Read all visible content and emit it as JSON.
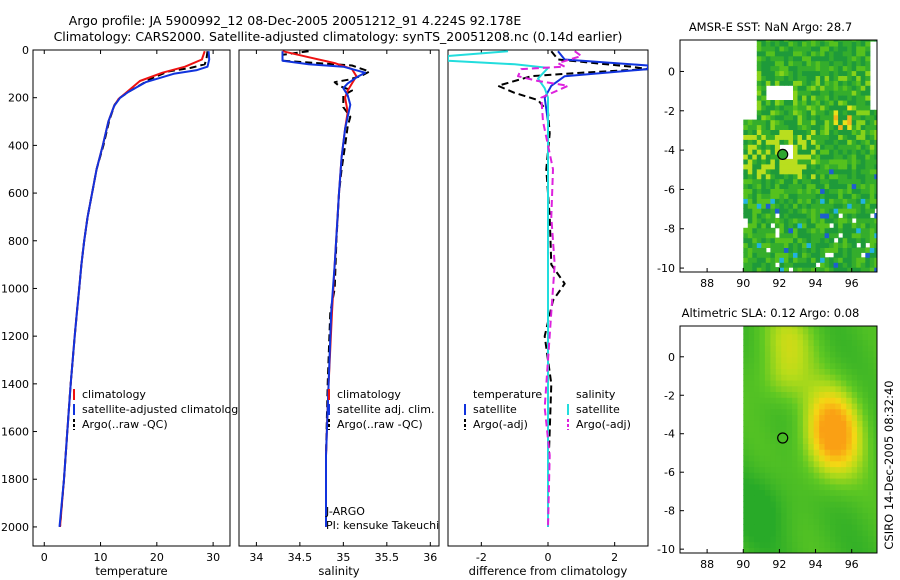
{
  "header": {
    "line1": "Argo profile: JA 5900992_12 08-Dec-2005 20051212_91 4.224S 92.178E",
    "line2": "Climatology: CARS2000. Satellite-adjusted climatology: synTS_20051208.nc (0.14d earlier)"
  },
  "side_label": "CSIRO 14-Dec-2005 08:32:40",
  "colors": {
    "red": "#ee1111",
    "blue": "#1133dd",
    "black": "#000000",
    "cyan": "#22dddd",
    "magenta": "#dd22dd"
  },
  "chart_data": [
    {
      "type": "line",
      "id": "temperature",
      "xlabel": "temperature",
      "xlim": [
        -2,
        33
      ],
      "ylim": [
        2080,
        0
      ],
      "xticks": [
        0,
        10,
        20,
        30
      ],
      "yticks": [
        0,
        200,
        400,
        600,
        800,
        1000,
        1200,
        1400,
        1600,
        1800,
        2000
      ],
      "legend": [
        {
          "label": "climatology",
          "color": "#ee1111",
          "dash": false
        },
        {
          "label": "satellite-adjusted climatology",
          "color": "#1133dd",
          "dash": false
        },
        {
          "label": "Argo(..raw -QC)",
          "color": "#000000",
          "dash": true
        }
      ],
      "series": [
        {
          "color": "#000000",
          "dash": true,
          "points": [
            [
              29,
              5
            ],
            [
              28.8,
              40
            ],
            [
              28.5,
              60
            ],
            [
              26,
              75
            ],
            [
              22,
              90
            ],
            [
              19,
              120
            ],
            [
              15,
              175
            ],
            [
              13.5,
              200
            ],
            [
              12.5,
              230
            ],
            [
              11.5,
              300
            ],
            [
              10.5,
              400
            ],
            [
              9.3,
              500
            ],
            [
              8.5,
              600
            ],
            [
              7.7,
              700
            ],
            [
              7.1,
              800
            ],
            [
              6.6,
              900
            ],
            [
              6.2,
              1000
            ],
            [
              5.8,
              1100
            ],
            [
              5.4,
              1200
            ],
            [
              4.7,
              1400
            ],
            [
              4.1,
              1600
            ],
            [
              3.5,
              1800
            ],
            [
              2.8,
              2000
            ]
          ]
        },
        {
          "color": "#ee1111",
          "dash": false,
          "points": [
            [
              28.5,
              5
            ],
            [
              28,
              40
            ],
            [
              25,
              70
            ],
            [
              21,
              95
            ],
            [
              17,
              130
            ],
            [
              14.5,
              180
            ],
            [
              13.2,
              205
            ],
            [
              12.4,
              235
            ],
            [
              11.4,
              300
            ],
            [
              10.4,
              400
            ],
            [
              9.3,
              500
            ],
            [
              8.5,
              600
            ],
            [
              7.7,
              700
            ],
            [
              7.1,
              800
            ],
            [
              6.6,
              900
            ],
            [
              6.2,
              1000
            ],
            [
              5.8,
              1100
            ],
            [
              5.4,
              1200
            ],
            [
              4.7,
              1400
            ],
            [
              4.1,
              1600
            ],
            [
              3.5,
              1800
            ],
            [
              2.8,
              2000
            ]
          ]
        },
        {
          "color": "#1133dd",
          "dash": false,
          "points": [
            [
              29.2,
              5
            ],
            [
              29.3,
              40
            ],
            [
              29,
              70
            ],
            [
              27,
              85
            ],
            [
              23,
              100
            ],
            [
              18,
              135
            ],
            [
              15,
              175
            ],
            [
              13.5,
              200
            ],
            [
              12.4,
              235
            ],
            [
              11.4,
              300
            ],
            [
              10.4,
              400
            ],
            [
              9.3,
              500
            ],
            [
              8.5,
              600
            ],
            [
              7.7,
              700
            ],
            [
              7.1,
              800
            ],
            [
              6.6,
              900
            ],
            [
              6.2,
              1000
            ],
            [
              5.8,
              1100
            ],
            [
              5.4,
              1200
            ],
            [
              4.7,
              1400
            ],
            [
              4.1,
              1600
            ],
            [
              3.5,
              1800
            ],
            [
              2.7,
              2000
            ]
          ]
        }
      ]
    },
    {
      "type": "line",
      "id": "salinity",
      "xlabel": "salinity",
      "xlim": [
        33.8,
        36.1
      ],
      "ylim": [
        2080,
        0
      ],
      "xticks": [
        34,
        34.5,
        35,
        35.5,
        36
      ],
      "yticks": [],
      "annotation": [
        "J-ARGO",
        "PI: kensuke Takeuchi"
      ],
      "legend": [
        {
          "label": "climatology",
          "color": "#ee1111",
          "dash": false
        },
        {
          "label": "satellite adj. clim.",
          "color": "#1133dd",
          "dash": false
        },
        {
          "label": "Argo(..raw -QC)",
          "color": "#000000",
          "dash": true
        }
      ],
      "series": [
        {
          "color": "#000000",
          "dash": true,
          "points": [
            [
              34.6,
              5
            ],
            [
              34.3,
              20
            ],
            [
              34.3,
              45
            ],
            [
              34.7,
              55
            ],
            [
              35.1,
              65
            ],
            [
              35.3,
              90
            ],
            [
              35.2,
              110
            ],
            [
              35.05,
              125
            ],
            [
              34.9,
              135
            ],
            [
              34.95,
              150
            ],
            [
              35.1,
              170
            ],
            [
              35.0,
              190
            ],
            [
              35.0,
              240
            ],
            [
              35.08,
              280
            ],
            [
              35.05,
              320
            ],
            [
              35.02,
              400
            ],
            [
              34.98,
              500
            ],
            [
              34.95,
              600
            ],
            [
              34.92,
              800
            ],
            [
              34.9,
              1000
            ],
            [
              34.85,
              1100
            ],
            [
              34.84,
              1200
            ],
            [
              34.82,
              1400
            ],
            [
              34.8,
              1700
            ],
            [
              34.8,
              2000
            ]
          ]
        },
        {
          "color": "#ee1111",
          "dash": false,
          "points": [
            [
              34.3,
              5
            ],
            [
              34.6,
              30
            ],
            [
              34.9,
              55
            ],
            [
              35.1,
              80
            ],
            [
              35.15,
              110
            ],
            [
              35.1,
              140
            ],
            [
              35.05,
              170
            ],
            [
              35.02,
              200
            ],
            [
              35.05,
              260
            ],
            [
              35.02,
              330
            ],
            [
              34.98,
              450
            ],
            [
              34.95,
              600
            ],
            [
              34.9,
              900
            ],
            [
              34.87,
              1100
            ],
            [
              34.83,
              1400
            ],
            [
              34.8,
              1700
            ],
            [
              34.8,
              2000
            ]
          ]
        },
        {
          "color": "#1133dd",
          "dash": false,
          "points": [
            [
              34.3,
              5
            ],
            [
              34.3,
              45
            ],
            [
              34.6,
              60
            ],
            [
              35.0,
              70
            ],
            [
              35.25,
              95
            ],
            [
              35.15,
              115
            ],
            [
              35.05,
              140
            ],
            [
              35.0,
              160
            ],
            [
              35.05,
              190
            ],
            [
              35.08,
              230
            ],
            [
              35.05,
              280
            ],
            [
              35.02,
              330
            ],
            [
              34.98,
              450
            ],
            [
              34.95,
              600
            ],
            [
              34.9,
              900
            ],
            [
              34.86,
              1100
            ],
            [
              34.83,
              1400
            ],
            [
              34.8,
              1700
            ],
            [
              34.8,
              2000
            ]
          ]
        }
      ]
    },
    {
      "type": "line",
      "id": "difference",
      "xlabel": "difference from climatology",
      "xlim": [
        -3,
        3
      ],
      "ylim": [
        2080,
        0
      ],
      "xticks": [
        -2,
        0,
        2
      ],
      "yticks": [],
      "legend": [
        {
          "label": "temperature",
          "color": null,
          "dash": false,
          "col": 0
        },
        {
          "label": "satellite",
          "color": "#1133dd",
          "dash": false,
          "col": 0
        },
        {
          "label": "Argo(-adj)",
          "color": "#000000",
          "dash": true,
          "col": 0
        },
        {
          "label": "salinity",
          "color": null,
          "dash": false,
          "col": 1
        },
        {
          "label": "satellite",
          "color": "#22dddd",
          "dash": false,
          "col": 1
        },
        {
          "label": "Argo(-adj)",
          "color": "#dd22dd",
          "dash": true,
          "col": 1
        }
      ],
      "series": [
        {
          "color": "#000000",
          "dash": true,
          "points": [
            [
              0.1,
              5
            ],
            [
              0.3,
              40
            ],
            [
              2.5,
              70
            ],
            [
              3.0,
              80
            ],
            [
              1.0,
              95
            ],
            [
              -0.5,
              110
            ],
            [
              -1.5,
              150
            ],
            [
              -1.0,
              180
            ],
            [
              -0.3,
              210
            ],
            [
              0.0,
              260
            ],
            [
              0.05,
              350
            ],
            [
              -0.05,
              500
            ],
            [
              0.05,
              700
            ],
            [
              0.1,
              900
            ],
            [
              0.5,
              980
            ],
            [
              0.15,
              1050
            ],
            [
              -0.1,
              1200
            ],
            [
              0.1,
              1400
            ],
            [
              0.05,
              1600
            ],
            [
              0.0,
              1800
            ],
            [
              0.0,
              2000
            ]
          ]
        },
        {
          "color": "#1133dd",
          "dash": false,
          "points": [
            [
              0.3,
              5
            ],
            [
              0.5,
              40
            ],
            [
              3.0,
              65
            ],
            [
              3.0,
              80
            ],
            [
              0.5,
              110
            ],
            [
              0.1,
              150
            ],
            [
              -0.1,
              200
            ],
            [
              0.0,
              300
            ],
            [
              0.0,
              600
            ],
            [
              0.0,
              1000
            ],
            [
              0.0,
              1400
            ],
            [
              0.0,
              2000
            ]
          ]
        },
        {
          "color": "#22dddd",
          "dash": false,
          "points": [
            [
              -1.2,
              5
            ],
            [
              -3.0,
              25
            ],
            [
              -3.0,
              45
            ],
            [
              -1.0,
              60
            ],
            [
              0.0,
              75
            ],
            [
              -0.3,
              120
            ],
            [
              -0.1,
              160
            ],
            [
              0.0,
              200
            ],
            [
              0.0,
              400
            ],
            [
              0.0,
              800
            ],
            [
              0.0,
              1200
            ],
            [
              0.0,
              1600
            ],
            [
              0.0,
              2000
            ]
          ]
        },
        {
          "color": "#dd22dd",
          "dash": true,
          "points": [
            [
              0.8,
              5
            ],
            [
              1.0,
              25
            ],
            [
              0.3,
              55
            ],
            [
              0.5,
              70
            ],
            [
              -0.8,
              80
            ],
            [
              -0.9,
              110
            ],
            [
              -0.3,
              130
            ],
            [
              0.6,
              150
            ],
            [
              -0.2,
              200
            ],
            [
              -0.15,
              300
            ],
            [
              0.15,
              500
            ],
            [
              0.1,
              700
            ],
            [
              0.2,
              900
            ],
            [
              0.1,
              1100
            ],
            [
              0.0,
              1300
            ],
            [
              -0.1,
              1500
            ],
            [
              0.05,
              1700
            ],
            [
              0.0,
              2000
            ]
          ]
        }
      ]
    },
    {
      "type": "heatmap",
      "id": "sst_map",
      "title": "AMSR-E SST: NaN Argo: 28.7",
      "xlim": [
        86.5,
        97.4
      ],
      "ylim": [
        -10.2,
        1.6
      ],
      "xticks": [
        88,
        90,
        92,
        94,
        96
      ],
      "yticks": [
        -10,
        -8,
        -6,
        -4,
        -2,
        0
      ],
      "marker": [
        92.18,
        -4.22
      ],
      "palette": [
        "#1e9a3a",
        "#34ad2c",
        "#55c11e",
        "#86d21a",
        "#b9de1e",
        "#e9e21a",
        "#f0b41a",
        "#21b2e0",
        "#1e5fcf"
      ]
    },
    {
      "type": "heatmap",
      "id": "sla_map",
      "title": "Altimetric SLA: 0.12 Argo: 0.08",
      "xlim": [
        86.5,
        97.4
      ],
      "ylim": [
        -10.2,
        1.6
      ],
      "xticks": [
        88,
        90,
        92,
        94,
        96
      ],
      "yticks": [
        -10,
        -8,
        -6,
        -4,
        -2,
        0
      ],
      "marker": [
        92.18,
        -4.22
      ]
    }
  ]
}
